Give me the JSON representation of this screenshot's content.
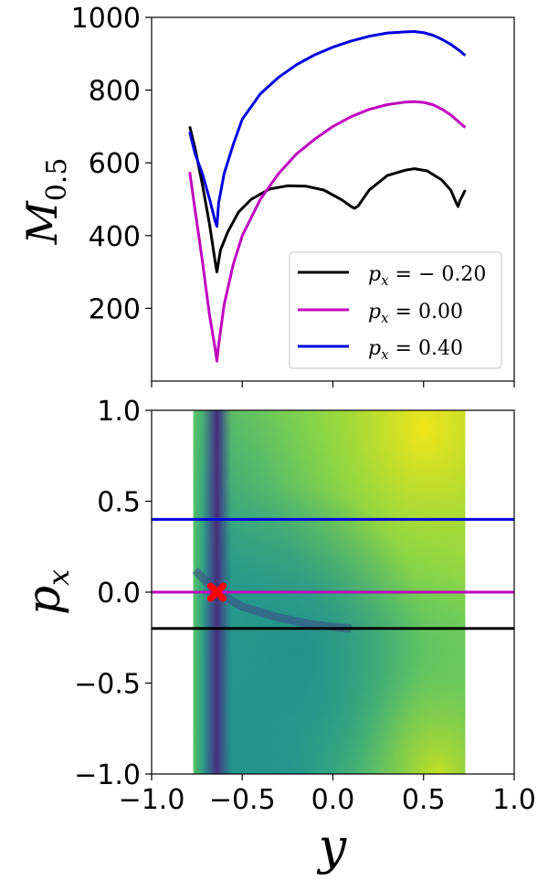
{
  "chart_data": [
    {
      "type": "line",
      "ylabel_main": "M",
      "ylabel_sub": "0.5",
      "xlim": [
        -1.0,
        1.0
      ],
      "ylim": [
        0,
        1000
      ],
      "yticks": [
        200,
        400,
        600,
        800,
        1000
      ],
      "yticklabels": [
        "200",
        "400",
        "600",
        "800",
        "1000"
      ],
      "legend_position": "lower-right",
      "series": [
        {
          "name": "p_x = -0.20",
          "label_main": "p",
          "label_sub": "x",
          "label_rest": " = − 0.20",
          "color": "#000000",
          "x": [
            -0.79,
            -0.76,
            -0.72,
            -0.68,
            -0.65,
            -0.64,
            -0.63,
            -0.62,
            -0.58,
            -0.52,
            -0.45,
            -0.35,
            -0.25,
            -0.15,
            -0.05,
            0.05,
            0.1,
            0.12,
            0.14,
            0.2,
            0.3,
            0.4,
            0.45,
            0.52,
            0.6,
            0.65,
            0.68,
            0.69,
            0.7,
            0.73
          ],
          "y": [
            700,
            640,
            540,
            430,
            330,
            300,
            330,
            360,
            410,
            465,
            500,
            528,
            537,
            536,
            525,
            498,
            480,
            475,
            482,
            525,
            565,
            580,
            584,
            578,
            553,
            525,
            490,
            480,
            495,
            525
          ]
        },
        {
          "name": "p_x = 0.00",
          "label_main": "p",
          "label_sub": "x",
          "label_rest": " = 0.00",
          "color": "#c000c0",
          "x": [
            -0.79,
            -0.76,
            -0.72,
            -0.68,
            -0.65,
            -0.64,
            -0.63,
            -0.6,
            -0.55,
            -0.5,
            -0.4,
            -0.3,
            -0.2,
            -0.1,
            0.0,
            0.1,
            0.2,
            0.3,
            0.4,
            0.45,
            0.5,
            0.55,
            0.6,
            0.65,
            0.7,
            0.73
          ],
          "y": [
            575,
            470,
            330,
            180,
            90,
            55,
            100,
            210,
            320,
            400,
            500,
            570,
            625,
            665,
            700,
            727,
            747,
            760,
            767,
            768,
            766,
            760,
            748,
            732,
            710,
            697
          ]
        },
        {
          "name": "p_x = 0.40",
          "label_main": "p",
          "label_sub": "x",
          "label_rest": " = 0.40",
          "color": "#0000dd",
          "x": [
            -0.79,
            -0.76,
            -0.72,
            -0.68,
            -0.65,
            -0.64,
            -0.63,
            -0.6,
            -0.55,
            -0.5,
            -0.4,
            -0.3,
            -0.2,
            -0.1,
            0.0,
            0.1,
            0.2,
            0.3,
            0.4,
            0.45,
            0.5,
            0.55,
            0.6,
            0.65,
            0.7,
            0.73
          ],
          "y": [
            685,
            625,
            570,
            500,
            440,
            425,
            490,
            570,
            650,
            720,
            790,
            835,
            870,
            897,
            918,
            935,
            948,
            957,
            960,
            961,
            958,
            951,
            940,
            926,
            908,
            895
          ]
        }
      ]
    },
    {
      "type": "heatmap",
      "colormap": "viridis",
      "xlabel": "y",
      "ylabel_main": "p",
      "ylabel_sub": "x",
      "xlim": [
        -1.0,
        1.0
      ],
      "ylim": [
        -1.0,
        1.0
      ],
      "heat_x_range": [
        -0.77,
        0.73
      ],
      "xticks": [
        -1.0,
        -0.5,
        0.0,
        0.5,
        1.0
      ],
      "xticklabels": [
        "−1.0",
        "−0.5",
        "0.0",
        "0.5",
        "1.0"
      ],
      "yticks": [
        -1.0,
        -0.5,
        0.0,
        0.5,
        1.0
      ],
      "yticklabels": [
        "−1.0",
        "−0.5",
        "0.0",
        "0.5",
        "1.0"
      ],
      "hlines": [
        {
          "y": 0.4,
          "color": "#0000dd"
        },
        {
          "y": 0.0,
          "color": "#c000c0"
        },
        {
          "y": -0.2,
          "color": "#000000"
        }
      ],
      "marker": {
        "x": -0.64,
        "y": 0.0,
        "color": "#ff0000",
        "symbol": "X"
      }
    }
  ]
}
